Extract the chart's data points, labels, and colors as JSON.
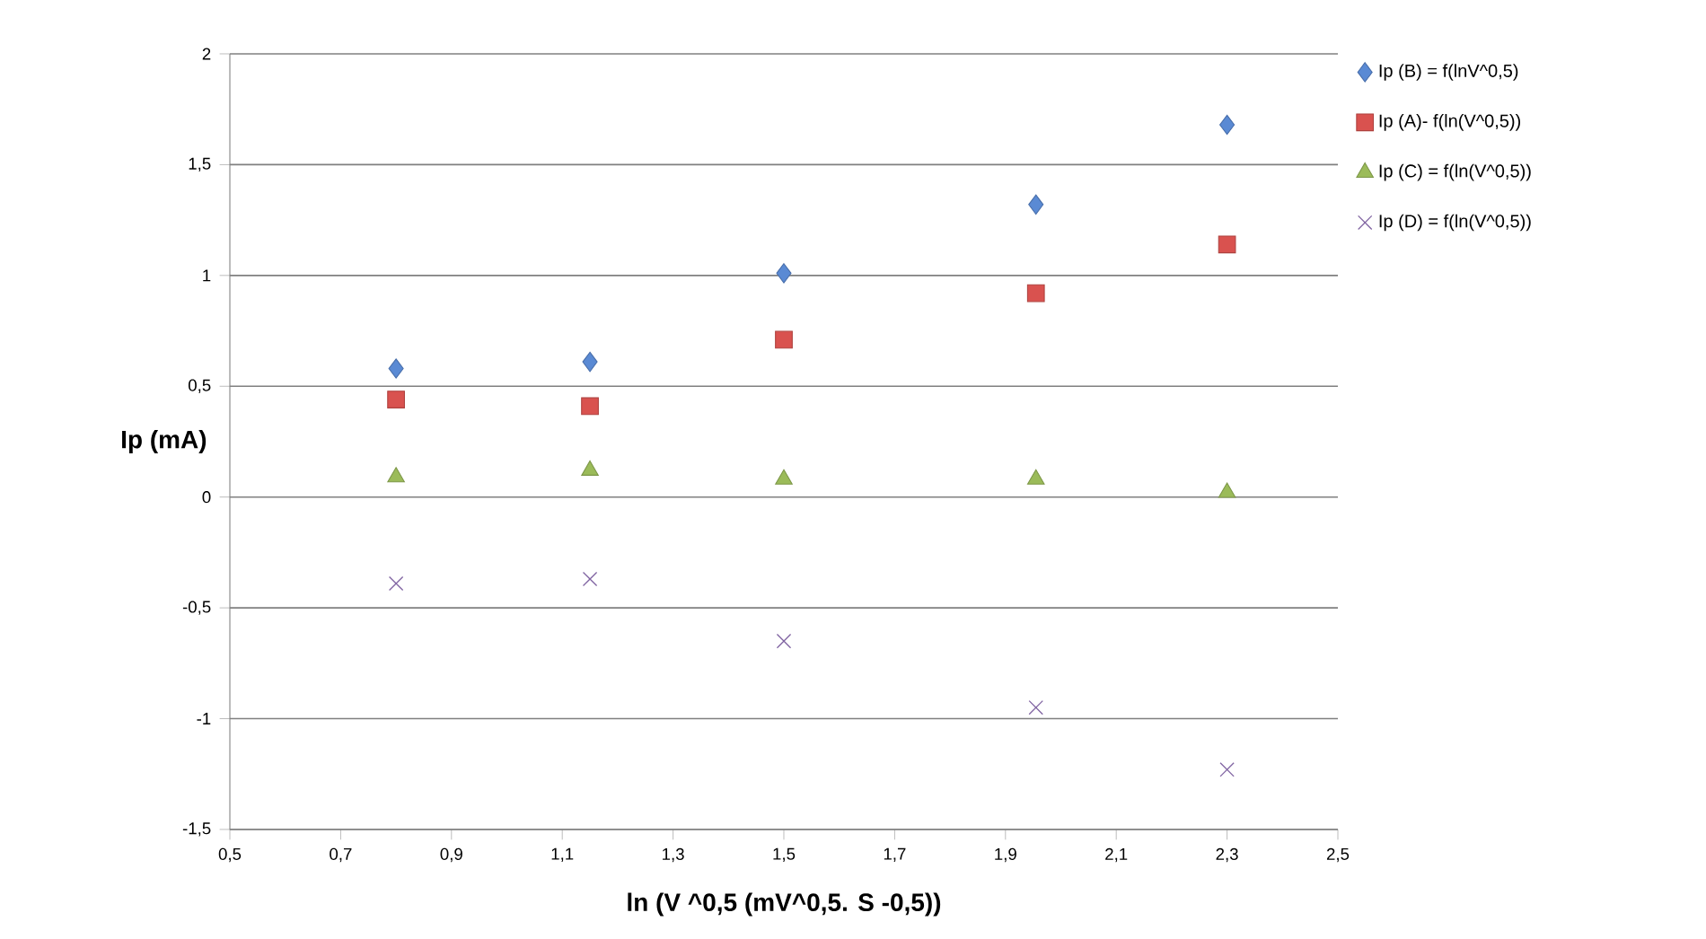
{
  "chart_data": {
    "type": "scatter",
    "xlabel": "ln (V ^0,5 (mV^0,5. S -0,5))",
    "ylabel": "Ip (mA)",
    "xlim": [
      0.5,
      2.5
    ],
    "ylim": [
      -1.5,
      2
    ],
    "xticks": [
      {
        "value": 0.5,
        "label": "0,5"
      },
      {
        "value": 0.7,
        "label": "0,7"
      },
      {
        "value": 0.9,
        "label": "0,9"
      },
      {
        "value": 1.1,
        "label": "1,1"
      },
      {
        "value": 1.3,
        "label": "1,3"
      },
      {
        "value": 1.5,
        "label": "1,5"
      },
      {
        "value": 1.7,
        "label": "1,7"
      },
      {
        "value": 1.9,
        "label": "1,9"
      },
      {
        "value": 2.1,
        "label": "2,1"
      },
      {
        "value": 2.3,
        "label": "2,3"
      },
      {
        "value": 2.5,
        "label": "2,5"
      }
    ],
    "yticks": [
      {
        "value": -1.5,
        "label": "-1,5"
      },
      -1,
      {
        "value": -0.5,
        "label": "-0,5"
      },
      0,
      {
        "value": 0.5,
        "label": "0,5"
      },
      1,
      {
        "value": 1.5,
        "label": "1,5"
      },
      2
    ],
    "grid": "y",
    "legend": "top right",
    "x": [
      0.8,
      1.15,
      1.5,
      1.955,
      2.3
    ],
    "series": [
      {
        "name": "Ip (B) = f(lnV^0,5)",
        "color": "#5a8ad4",
        "marker": "diamond",
        "values": [
          0.58,
          0.61,
          1.01,
          1.32,
          1.68
        ]
      },
      {
        "name": "Ip (A)- f(ln(V^0,5))",
        "color": "#d9524f",
        "marker": "square",
        "values": [
          0.44,
          0.41,
          0.71,
          0.92,
          1.14
        ]
      },
      {
        "name": "Ip (C) = f(ln(V^0,5))",
        "color": "#9bbb59",
        "marker": "triangle",
        "values": [
          0.09,
          0.12,
          0.08,
          0.08,
          0.02
        ]
      },
      {
        "name": "Ip (D) = f(ln(V^0,5))",
        "color": "#8064a2",
        "marker": "cross",
        "values": [
          -0.39,
          -0.37,
          -0.65,
          -0.95,
          -1.23
        ]
      }
    ]
  }
}
